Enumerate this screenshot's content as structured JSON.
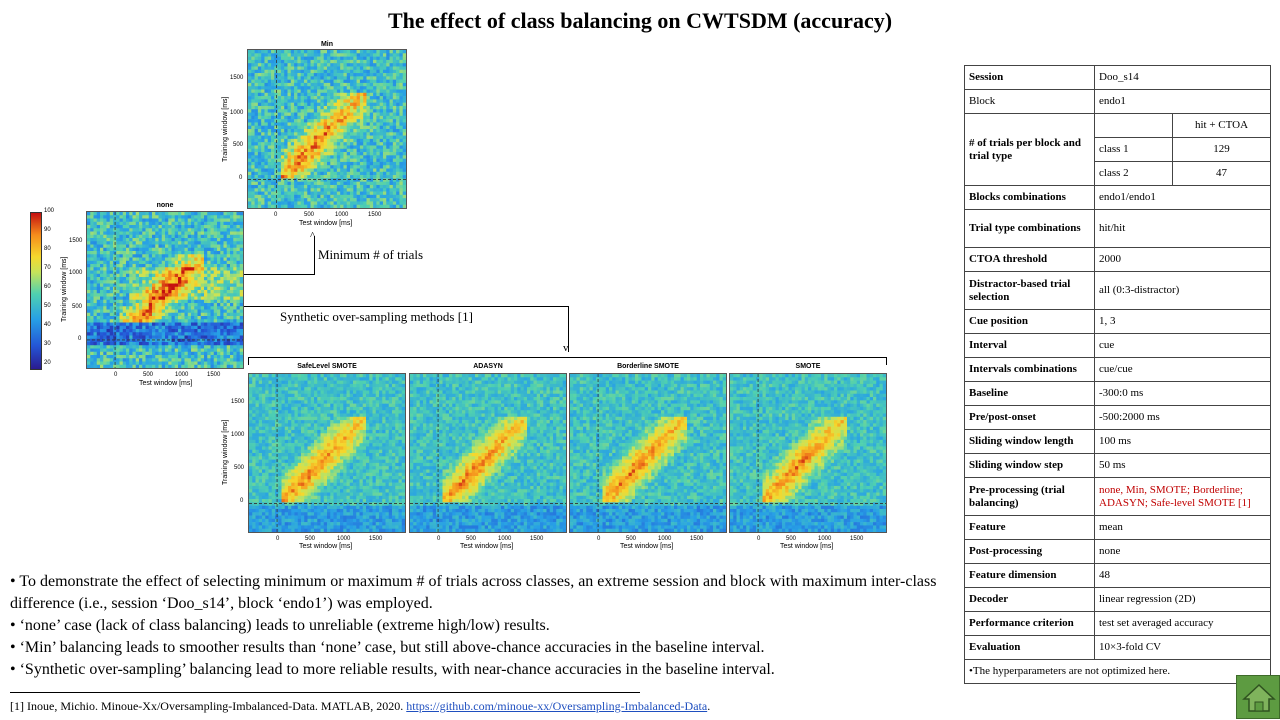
{
  "title": "The effect of class balancing on CWTSDM (accuracy)",
  "heatmaps": {
    "min": {
      "title": "Min"
    },
    "none": {
      "title": "none"
    },
    "safelevel": {
      "title": "SafeLevel SMOTE"
    },
    "adasyn": {
      "title": "ADASYN"
    },
    "borderline": {
      "title": "Borderline SMOTE"
    },
    "smote": {
      "title": "SMOTE"
    },
    "xlabel": "Test window [ms]",
    "ylabel": "Training window [ms]",
    "xticks": [
      "0",
      "500",
      "1000",
      "1500"
    ],
    "yticks": [
      "1500",
      "1000",
      "500",
      "0"
    ]
  },
  "colorbar": {
    "ticks": [
      "100",
      "90",
      "80",
      "70",
      "60",
      "50",
      "40",
      "30",
      "20"
    ]
  },
  "annotations": {
    "min_trials": "Minimum # of trials",
    "synthetic": "Synthetic over-sampling methods [1]"
  },
  "bullets": [
    "•  To demonstrate the effect of selecting minimum or maximum # of trials across classes, an extreme session and block with maximum inter-class difference (i.e., session ‘Doo_s14’, block ‘endo1’) was employed.",
    "•  ‘none’ case (lack of class balancing) leads to unreliable  (extreme high/low)  results.",
    "•  ‘Min’ balancing leads to smoother results than ‘none’ case, but still  above-chance accuracies in the baseline interval.",
    "•  ‘Synthetic over-sampling’ balancing lead to more reliable  results, with near-chance accuracies in the baseline interval."
  ],
  "reference": {
    "text": "[1] Inoue, Michio. Minoue-Xx/Oversampling-Imbalanced-Data.  MATLAB, 2020.  ",
    "link": "https://github.com/minoue-xx/Oversampling-Imbalanced-Data",
    "tail": "."
  },
  "table": {
    "session": {
      "k": "Session",
      "v": "Doo_s14"
    },
    "block": {
      "k": "Block",
      "v": "endo1"
    },
    "trials": {
      "k": "# of trials per block and trial type",
      "header": "hit + CTOA",
      "class1": "class 1",
      "class1_v": "129",
      "class2": "class 2",
      "class2_v": "47"
    },
    "rows": [
      {
        "k": "Blocks combinations",
        "v": "endo1/endo1"
      },
      {
        "k": "Trial type combinations",
        "v": "hit/hit"
      },
      {
        "k": "CTOA threshold",
        "v": "2000"
      },
      {
        "k": "Distractor-based trial selection",
        "v": "all (0:3-distractor)"
      },
      {
        "k": "Cue position",
        "v": "1, 3"
      },
      {
        "k": "Interval",
        "v": "cue"
      },
      {
        "k": "Intervals combinations",
        "v": "cue/cue"
      },
      {
        "k": "Baseline",
        "v": "-300:0 ms"
      },
      {
        "k": "Pre/post-onset",
        "v": "-500:2000 ms"
      },
      {
        "k": "Sliding window length",
        "v": "100 ms"
      },
      {
        "k": "Sliding window step",
        "v": "50 ms"
      },
      {
        "k": "Pre-processing (trial balancing)",
        "v": "none, Min, SMOTE; Borderline; ADASYN; Safe-level  SMOTE [1]"
      },
      {
        "k": "Feature",
        "v": "mean"
      },
      {
        "k": "Post-processing",
        "v": "none"
      },
      {
        "k": "Feature dimension",
        "v": "48"
      },
      {
        "k": "Decoder",
        "v": "linear regression (2D)"
      },
      {
        "k": "Performance criterion",
        "v": "test set averaged  accuracy"
      },
      {
        "k": "Evaluation",
        "v": "10×3-fold CV"
      }
    ],
    "note": "•The hyperparameters are not optimized here."
  },
  "colors": {
    "red_text": "#c00000",
    "home_button": "#5d9b41"
  },
  "icons": {
    "home": "home-icon"
  }
}
